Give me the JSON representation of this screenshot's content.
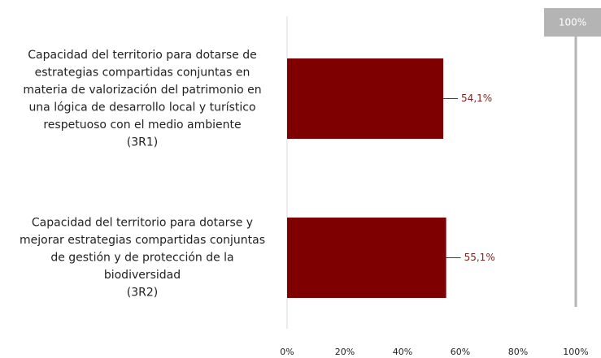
{
  "chart_data": {
    "type": "barh",
    "categories": [
      [
        "Capacidad del territorio para dotarse de",
        "estrategias compartidas conjuntas en",
        "materia de valorización del patrimonio en",
        "una lógica de desarrollo local y turístico",
        "respetuoso con el medio ambiente",
        "(3R1)"
      ],
      [
        "Capacidad del territorio para dotarse y",
        "mejorar estrategias compartidas conjuntas",
        "de gestión y de protección de la",
        "biodiversidad",
        "(3R2)"
      ]
    ],
    "values": [
      54.1,
      55.1
    ],
    "value_labels": [
      "54,1%",
      "55,1%"
    ],
    "color": "#7f0000",
    "label_color": "#7f1f1f",
    "xlim": [
      0,
      100
    ],
    "xticks": [
      {
        "value": 0,
        "label": "0%"
      },
      {
        "value": 20,
        "label": "20%"
      },
      {
        "value": 40,
        "label": "40%"
      },
      {
        "value": 60,
        "label": "60%"
      },
      {
        "value": 80,
        "label": "80%"
      },
      {
        "value": 100,
        "label": "100%"
      }
    ],
    "reference": {
      "value": 100,
      "label": "100%",
      "color": "#b4b4b4"
    }
  }
}
